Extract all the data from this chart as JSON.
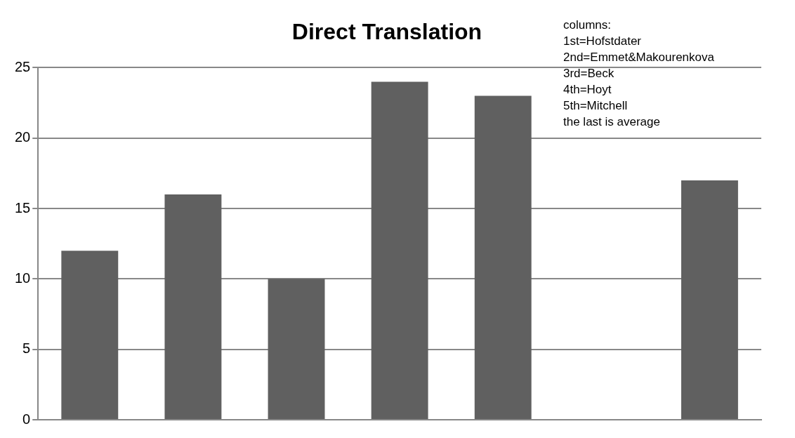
{
  "chart_data": {
    "type": "bar",
    "title": "Direct Translation",
    "categories": [
      null,
      null,
      null,
      null,
      null,
      null,
      null
    ],
    "values": [
      12,
      16,
      10,
      24,
      23,
      null,
      17
    ],
    "color": "#606060",
    "ylim": [
      0,
      25
    ],
    "yticks": [
      0,
      5,
      10,
      15,
      20,
      25
    ],
    "grid": "y",
    "legend": false,
    "annotations": [
      "columns:",
      "1st=Hofstdater",
      "2nd=Emmet&Makourenkova",
      "3rd=Beck",
      "4th=Hoyt",
      "5th=Mitchell",
      "the last is average"
    ]
  }
}
